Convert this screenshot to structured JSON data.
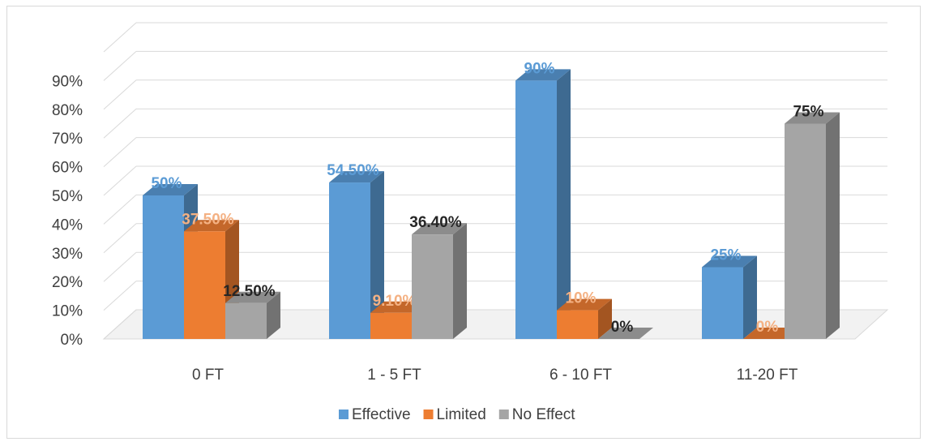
{
  "chart_data": {
    "type": "bar",
    "title": "",
    "xlabel": "",
    "ylabel": "",
    "categories": [
      "0 FT",
      "1 - 5 FT",
      "6 - 10 FT",
      "11-20 FT"
    ],
    "series": [
      {
        "name": "Effective",
        "values": [
          50,
          54.5,
          90,
          25
        ],
        "labels": [
          "50%",
          "54.50%",
          "90%",
          "25%"
        ],
        "color": "#5B9BD5",
        "side_color": "#3E6A91",
        "top_color": "#4A7FB0",
        "label_color": "#5B9BD5"
      },
      {
        "name": "Limited",
        "values": [
          37.5,
          9.1,
          10,
          0
        ],
        "labels": [
          "37.50%",
          "9.10%",
          "10%",
          "0%"
        ],
        "color": "#ED7D31",
        "side_color": "#A35521",
        "top_color": "#C4672A",
        "label_color": "#F4B183"
      },
      {
        "name": "No Effect",
        "values": [
          12.5,
          36.4,
          0,
          75
        ],
        "labels": [
          "12.50%",
          "36.40%",
          "0%",
          "75%"
        ],
        "color": "#A5A5A5",
        "side_color": "#727272",
        "top_color": "#8C8C8C",
        "label_color": "#262626"
      }
    ],
    "yticks": [
      "0%",
      "10%",
      "20%",
      "30%",
      "40%",
      "50%",
      "60%",
      "70%",
      "80%",
      "90%"
    ],
    "ylim": [
      0,
      100
    ],
    "grid": true,
    "legend_position": "bottom",
    "style": "3d-column"
  }
}
